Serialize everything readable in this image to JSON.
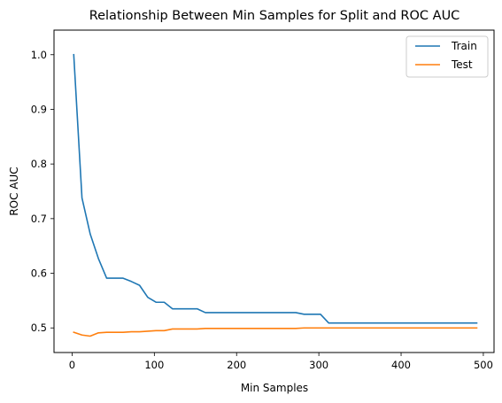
{
  "chart_data": {
    "type": "line",
    "title": "Relationship Between Min Samples for Split and ROC AUC",
    "xlabel": "Min Samples",
    "ylabel": "ROC AUC",
    "xlim": [
      -22,
      513
    ],
    "ylim": [
      0.455,
      1.045
    ],
    "x_ticks": [
      0,
      100,
      200,
      300,
      400,
      500
    ],
    "y_ticks": [
      0.5,
      0.6,
      0.7,
      0.8,
      0.9,
      1.0
    ],
    "x_tick_labels": [
      "0",
      "100",
      "200",
      "300",
      "400",
      "500"
    ],
    "y_tick_labels": [
      "0.5",
      "0.6",
      "0.7",
      "0.8",
      "0.9",
      "1.0"
    ],
    "grid": false,
    "legend_position": "top-right",
    "series": [
      {
        "name": "Train",
        "color": "#1f77b4",
        "x": [
          2,
          12,
          22,
          32,
          42,
          52,
          62,
          72,
          82,
          92,
          102,
          112,
          122,
          132,
          142,
          152,
          162,
          172,
          182,
          192,
          202,
          212,
          222,
          232,
          242,
          252,
          262,
          272,
          282,
          292,
          302,
          312,
          322,
          332,
          342,
          352,
          362,
          372,
          382,
          392,
          402,
          412,
          422,
          432,
          442,
          452,
          462,
          472,
          482,
          492
        ],
        "values": [
          1.0,
          0.738,
          0.672,
          0.627,
          0.591,
          0.591,
          0.591,
          0.585,
          0.578,
          0.556,
          0.547,
          0.547,
          0.535,
          0.535,
          0.535,
          0.535,
          0.528,
          0.528,
          0.528,
          0.528,
          0.528,
          0.528,
          0.528,
          0.528,
          0.528,
          0.528,
          0.528,
          0.528,
          0.525,
          0.525,
          0.525,
          0.509,
          0.509,
          0.509,
          0.509,
          0.509,
          0.509,
          0.509,
          0.509,
          0.509,
          0.509,
          0.509,
          0.509,
          0.509,
          0.509,
          0.509,
          0.509,
          0.509,
          0.509,
          0.509
        ]
      },
      {
        "name": "Test",
        "color": "#ff7f0e",
        "x": [
          2,
          12,
          22,
          32,
          42,
          52,
          62,
          72,
          82,
          92,
          102,
          112,
          122,
          132,
          142,
          152,
          162,
          172,
          182,
          192,
          202,
          212,
          222,
          232,
          242,
          252,
          262,
          272,
          282,
          292,
          302,
          312,
          322,
          332,
          342,
          352,
          362,
          372,
          382,
          392,
          402,
          412,
          422,
          432,
          442,
          452,
          462,
          472,
          482,
          492
        ],
        "values": [
          0.492,
          0.487,
          0.485,
          0.491,
          0.492,
          0.492,
          0.492,
          0.493,
          0.493,
          0.494,
          0.495,
          0.495,
          0.498,
          0.498,
          0.498,
          0.498,
          0.499,
          0.499,
          0.499,
          0.499,
          0.499,
          0.499,
          0.499,
          0.499,
          0.499,
          0.499,
          0.499,
          0.499,
          0.5,
          0.5,
          0.5,
          0.5,
          0.5,
          0.5,
          0.5,
          0.5,
          0.5,
          0.5,
          0.5,
          0.5,
          0.5,
          0.5,
          0.5,
          0.5,
          0.5,
          0.5,
          0.5,
          0.5,
          0.5,
          0.5
        ]
      }
    ]
  }
}
